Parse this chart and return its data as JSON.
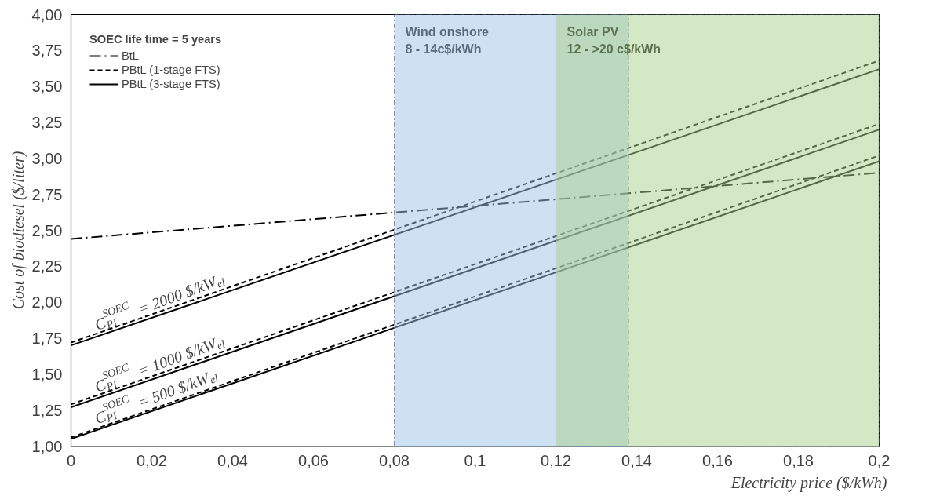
{
  "chart_data": {
    "type": "line",
    "xlabel": "Electricity price ($/kWh)",
    "ylabel": "Cost of biodiesel ($/liter)",
    "legend_title": "SOEC life time = 5 years",
    "legend": "top left",
    "grid": false,
    "x": [
      0,
      0.2
    ],
    "series": [
      {
        "name": "BtL",
        "color": "#000000",
        "line_style": "dashdot",
        "values": [
          2.44,
          2.9
        ]
      },
      {
        "name": "PBtL (1-stage FTS)",
        "color": "#000000",
        "line_style": "dashed",
        "values": [
          1.72,
          3.68
        ]
      },
      {
        "name": "PBtL (3-stage FTS)",
        "color": "#000000",
        "line_style": "solid",
        "values": [
          1.7,
          3.62
        ]
      },
      {
        "color": "#000000",
        "line_style": "dashed",
        "values": [
          1.29,
          3.24
        ]
      },
      {
        "color": "#000000",
        "line_style": "solid",
        "values": [
          1.27,
          3.2
        ]
      },
      {
        "color": "#000000",
        "line_style": "dashed",
        "values": [
          1.06,
          3.02
        ]
      },
      {
        "color": "#000000",
        "line_style": "solid",
        "values": [
          1.05,
          2.98
        ]
      }
    ],
    "xlim": [
      0,
      0.2
    ],
    "ylim": [
      1,
      4
    ],
    "xticks": [
      0,
      {
        "value": 0.02,
        "label": "0,02"
      },
      {
        "value": 0.04,
        "label": "0,04"
      },
      {
        "value": 0.06,
        "label": "0,06"
      },
      {
        "value": 0.08,
        "label": "0,08"
      },
      {
        "value": 0.1,
        "label": "0,1"
      },
      {
        "value": 0.12,
        "label": "0,12"
      },
      {
        "value": 0.14,
        "label": "0,14"
      },
      {
        "value": 0.16,
        "label": "0,16"
      },
      {
        "value": 0.18,
        "label": "0,18"
      },
      {
        "value": 0.2,
        "label": "0,2"
      }
    ],
    "yticks": [
      {
        "value": 1,
        "label": "1,00"
      },
      {
        "value": 1.25,
        "label": "1,25"
      },
      {
        "value": 1.5,
        "label": "1,50"
      },
      {
        "value": 1.75,
        "label": "1,75"
      },
      {
        "value": 2,
        "label": "2,00"
      },
      {
        "value": 2.25,
        "label": "2,25"
      },
      {
        "value": 2.5,
        "label": "2,50"
      },
      {
        "value": 2.75,
        "label": "2,75"
      },
      {
        "value": 3,
        "label": "3,00"
      },
      {
        "value": 3.25,
        "label": "3,25"
      },
      {
        "value": 3.5,
        "label": "3,50"
      },
      {
        "value": 3.75,
        "label": "3,75"
      },
      {
        "value": 4,
        "label": "4,00"
      }
    ],
    "bands": [
      {
        "axis": "x",
        "from": 0.08,
        "to": 0.138,
        "label": "Wind onshore\n8 - 14c$/kWh",
        "color": "#9dc3e6"
      },
      {
        "axis": "x",
        "from": 0.12,
        "to": 0.2,
        "label": "Solar PV\n12 - >20 c$/kWh",
        "color": "#a9d18e"
      }
    ],
    "annotations": [
      "C$^{SOEC}$$_{PI}$ = 2000 $/kW$_{el}$",
      "C$^{SOEC}$$_{PI}$ = 1000 $/kW$_{el}$",
      "C$^{SOEC}$$_{PI}$ = 500 $/kW$_{el}$"
    ]
  }
}
